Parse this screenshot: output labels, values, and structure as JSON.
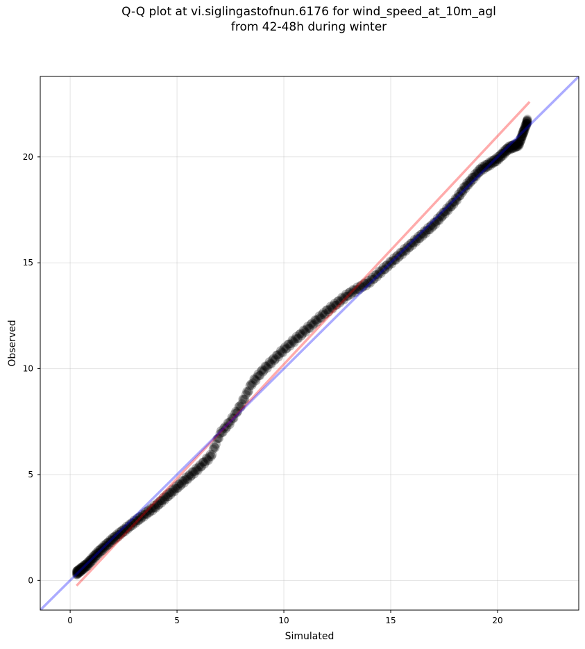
{
  "chart_data": {
    "type": "scatter",
    "title_line1": "Q-Q plot at vi.siglingastofnun.6176 for wind_speed_at_10m_agl",
    "title_line2": "from 42-48h during winter",
    "xlabel": "Simulated",
    "ylabel": "Observed",
    "xlim": [
      -1.4,
      23.8
    ],
    "ylim": [
      -1.4,
      23.8
    ],
    "xticks": [
      0,
      5,
      10,
      15,
      20
    ],
    "yticks": [
      0,
      5,
      10,
      15,
      20
    ],
    "grid": true,
    "point_color": "#000000",
    "identity_line_color": "#0000ff",
    "fit_line_color": "#ff0000",
    "identity_line": [
      [
        -1.4,
        -1.4
      ],
      [
        23.8,
        23.8
      ]
    ],
    "fit_line": [
      [
        0.3,
        -0.25
      ],
      [
        21.5,
        22.6
      ]
    ],
    "qq_anchors": [
      [
        0.3,
        0.35
      ],
      [
        0.8,
        0.75
      ],
      [
        1.3,
        1.3
      ],
      [
        2.0,
        1.95
      ],
      [
        3.0,
        2.75
      ],
      [
        4.0,
        3.5
      ],
      [
        5.0,
        4.4
      ],
      [
        6.0,
        5.3
      ],
      [
        6.6,
        5.9
      ],
      [
        7.0,
        6.9
      ],
      [
        7.5,
        7.5
      ],
      [
        8.0,
        8.3
      ],
      [
        8.5,
        9.3
      ],
      [
        9.0,
        9.9
      ],
      [
        10.0,
        10.9
      ],
      [
        11.0,
        11.8
      ],
      [
        12.0,
        12.7
      ],
      [
        13.0,
        13.5
      ],
      [
        14.0,
        14.1
      ],
      [
        15.0,
        15.0
      ],
      [
        16.0,
        15.9
      ],
      [
        17.0,
        16.8
      ],
      [
        18.0,
        17.9
      ],
      [
        18.5,
        18.6
      ],
      [
        19.2,
        19.4
      ],
      [
        20.0,
        19.9
      ],
      [
        20.5,
        20.4
      ],
      [
        21.0,
        20.6
      ],
      [
        21.4,
        21.7
      ]
    ]
  }
}
